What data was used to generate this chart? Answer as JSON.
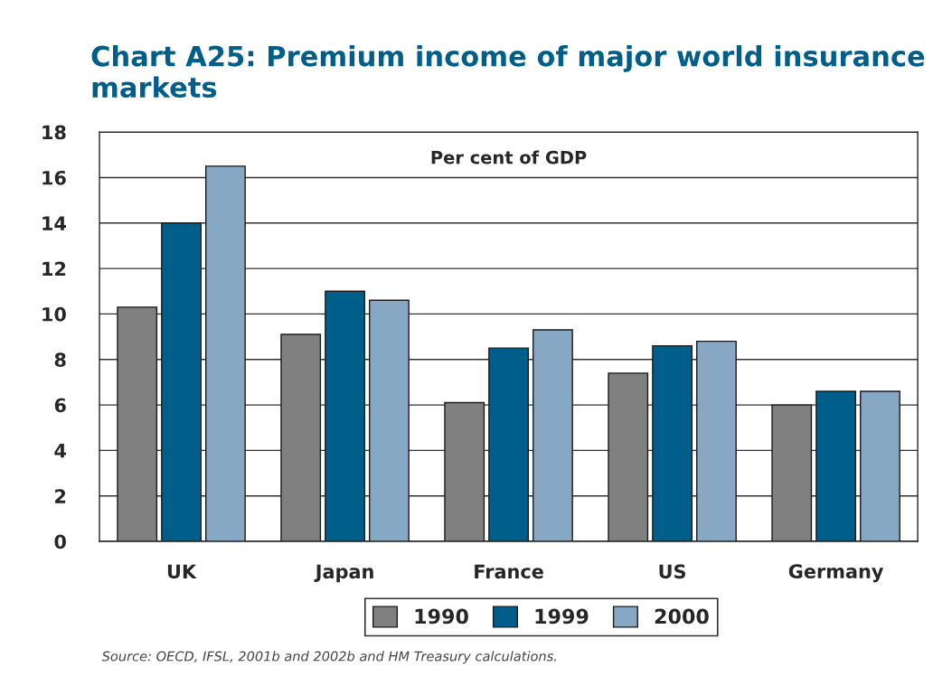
{
  "chart_data": {
    "type": "bar",
    "title": "Chart A25: Premium income of major world insurance markets",
    "ylabel": "Per cent of GDP",
    "categories": [
      "UK",
      "Japan",
      "France",
      "US",
      "Germany"
    ],
    "series": [
      {
        "name": "1990",
        "color": "#808080",
        "values": [
          10.3,
          9.1,
          6.1,
          7.4,
          6.0
        ]
      },
      {
        "name": "1999",
        "color": "#005e8a",
        "values": [
          14.0,
          11.0,
          8.5,
          8.6,
          6.6
        ]
      },
      {
        "name": "2000",
        "color": "#87a8c5",
        "values": [
          16.5,
          10.6,
          9.3,
          8.8,
          6.6
        ]
      }
    ],
    "ylim": [
      0,
      18
    ],
    "yticks": [
      0,
      2,
      4,
      6,
      8,
      10,
      12,
      14,
      16,
      18
    ],
    "grid": "y",
    "legend": "bottom",
    "annotations": [
      "Source: OECD, IFSL, 2001b and 2002b and HM Treasury calculations."
    ]
  }
}
